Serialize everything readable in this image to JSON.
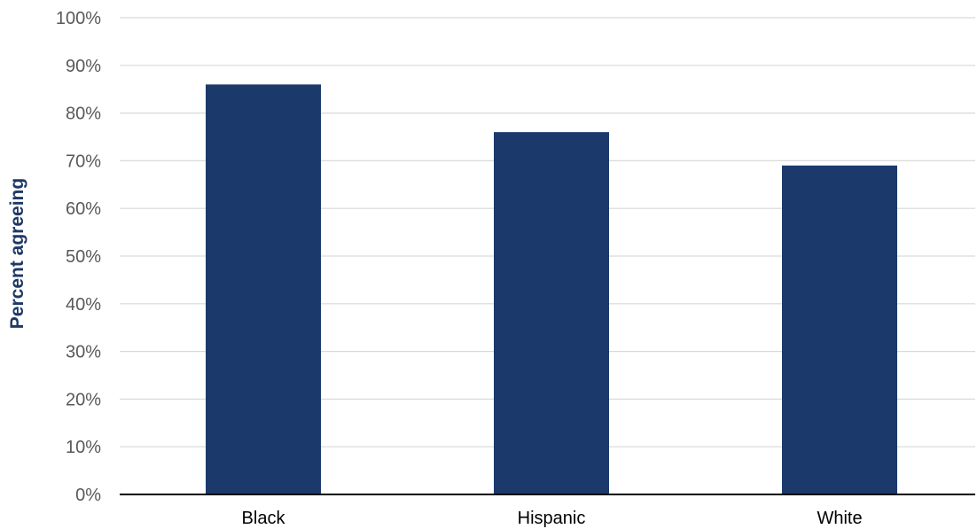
{
  "chart_data": {
    "type": "bar",
    "title": "",
    "xlabel": "",
    "ylabel": "Percent agreeing",
    "categories": [
      "Black",
      "Hispanic",
      "White"
    ],
    "values": [
      86,
      76,
      69
    ],
    "ylim": [
      0,
      100
    ],
    "y_ticks": [
      0,
      10,
      20,
      30,
      40,
      50,
      60,
      70,
      80,
      90,
      100
    ],
    "y_tick_labels": [
      "0%",
      "10%",
      "20%",
      "30%",
      "40%",
      "50%",
      "60%",
      "70%",
      "80%",
      "90%",
      "100%"
    ],
    "grid": true,
    "legend": "none",
    "colors": {
      "bar": "#1b3a6b",
      "gridline": "#d9d9d9",
      "axis": "#000000",
      "ylabel": "#1f3864"
    }
  }
}
